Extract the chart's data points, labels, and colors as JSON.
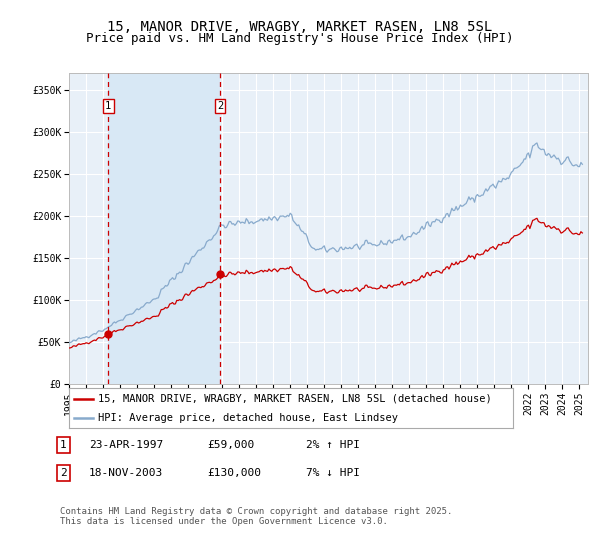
{
  "title": "15, MANOR DRIVE, WRAGBY, MARKET RASEN, LN8 5SL",
  "subtitle": "Price paid vs. HM Land Registry's House Price Index (HPI)",
  "ytick_labels": [
    "£0",
    "£50K",
    "£100K",
    "£150K",
    "£200K",
    "£250K",
    "£300K",
    "£350K"
  ],
  "yticks": [
    0,
    50000,
    100000,
    150000,
    200000,
    250000,
    300000,
    350000
  ],
  "ylim": [
    0,
    370000
  ],
  "xlim_start": 1995.0,
  "xlim_end": 2025.5,
  "sale1_x": 1997.31,
  "sale1_y": 59000,
  "sale2_x": 2003.89,
  "sale2_y": 130000,
  "line_color_property": "#cc0000",
  "line_color_hpi": "#88aacc",
  "shade_color": "#d8e8f5",
  "background_color": "#e8f0f8",
  "grid_color": "#ffffff",
  "legend_property": "15, MANOR DRIVE, WRAGBY, MARKET RASEN, LN8 5SL (detached house)",
  "legend_hpi": "HPI: Average price, detached house, East Lindsey",
  "annotation1_date": "23-APR-1997",
  "annotation1_price": "£59,000",
  "annotation1_hpi": "2% ↑ HPI",
  "annotation2_date": "18-NOV-2003",
  "annotation2_price": "£130,000",
  "annotation2_hpi": "7% ↓ HPI",
  "footer": "Contains HM Land Registry data © Crown copyright and database right 2025.\nThis data is licensed under the Open Government Licence v3.0.",
  "title_fontsize": 10,
  "subtitle_fontsize": 9,
  "tick_fontsize": 7,
  "legend_fontsize": 7.5,
  "annotation_fontsize": 8,
  "footer_fontsize": 6.5
}
